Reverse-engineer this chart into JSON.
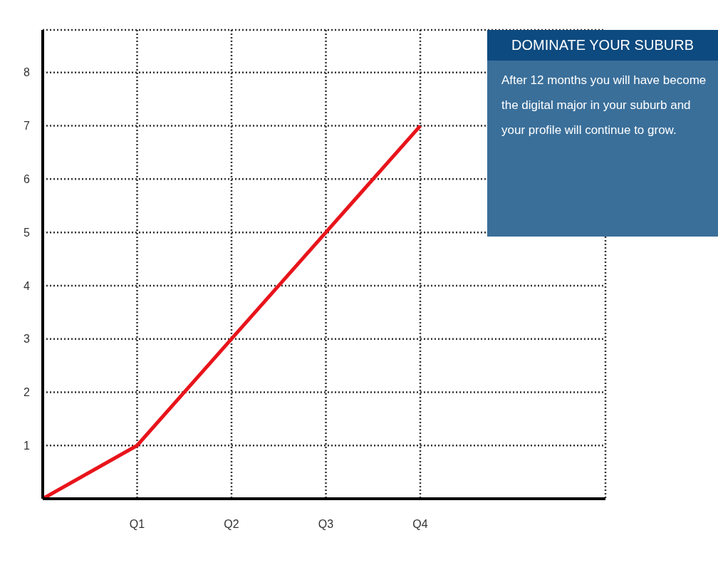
{
  "chart_data": {
    "type": "line",
    "title": "DOMINATE YOUR SUBURB",
    "annotations": [
      "After 12 months you will have become the digital major in your suburb and your profile will continue to grow."
    ],
    "categories": [
      null,
      "Q1",
      "Q2",
      "Q3",
      "Q4"
    ],
    "values": [
      0,
      1,
      3,
      5,
      7
    ],
    "color": "#e8141b",
    "ylim": [
      0,
      8.8
    ],
    "yticks": [
      1,
      2,
      3,
      4,
      5,
      6,
      7,
      8
    ],
    "grid": true,
    "marker": "none",
    "line_style": "solid"
  }
}
